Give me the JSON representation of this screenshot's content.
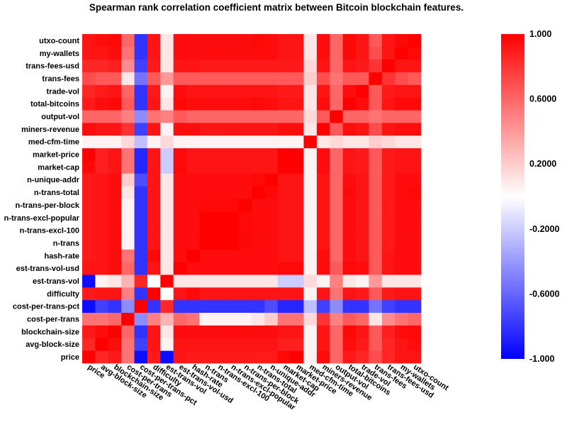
{
  "chart_data": {
    "type": "heatmap",
    "title": "Spearman rank correlation coefficient matrix between Bitcoin blockchain features.",
    "features": [
      "price",
      "avg-block-size",
      "blockchain-size",
      "cost-per-trans",
      "cost-per-trans-pct",
      "difficulty",
      "est-trans-vol",
      "est-trans-vol-usd",
      "hash-rate",
      "n-trans",
      "n-trans-excl-100",
      "n-trans-excl-popular",
      "n-trans-per-block",
      "n-trans-total",
      "n-unique-addr",
      "market-cap",
      "market-price",
      "med-cfm-time",
      "miners-revenue",
      "output-vol",
      "total-bitcoins",
      "trade-vol",
      "trans-fees",
      "trans-fees-usd",
      "my-wallets",
      "utxo-count"
    ],
    "x_order": "features as listed, left to right",
    "y_order": "features as listed, bottom (price) to top (utxo-count)",
    "colormap": {
      "min": -1.0,
      "mid": 0.0,
      "max": 1.0,
      "min_color": "#0000ff",
      "mid_color": "#ffffff",
      "max_color": "#ff0000"
    },
    "colorbar_ticks": [
      "1.000",
      "0.6000",
      "0.2000",
      "-0.2000",
      "-0.6000",
      "-1.000"
    ],
    "colorbar_tick_values": [
      1.0,
      0.6,
      0.2,
      -0.2,
      -0.6,
      -1.0
    ],
    "matrix": [
      [
        1.0,
        0.85,
        0.9,
        0.55,
        -0.95,
        0.9,
        -0.95,
        0.92,
        0.9,
        0.9,
        0.9,
        0.9,
        0.9,
        0.9,
        0.9,
        0.97,
        1.0,
        0.05,
        0.95,
        0.6,
        0.9,
        0.85,
        0.7,
        0.85,
        0.92,
        0.92
      ],
      [
        0.85,
        1.0,
        0.95,
        0.55,
        -0.75,
        0.92,
        0.05,
        0.92,
        0.92,
        0.92,
        0.92,
        0.92,
        0.92,
        0.92,
        0.92,
        0.88,
        0.88,
        0.05,
        0.92,
        0.6,
        0.95,
        0.9,
        0.65,
        0.85,
        0.92,
        0.95
      ],
      [
        0.9,
        0.95,
        1.0,
        0.6,
        -0.8,
        0.92,
        0.1,
        0.95,
        0.95,
        0.95,
        0.95,
        0.95,
        0.95,
        0.95,
        0.95,
        0.92,
        0.92,
        0.05,
        0.92,
        0.6,
        0.97,
        0.92,
        0.65,
        0.88,
        0.95,
        0.97
      ],
      [
        0.55,
        0.55,
        0.6,
        1.0,
        -0.45,
        0.5,
        0.3,
        0.6,
        0.55,
        0.05,
        0.05,
        0.05,
        0.05,
        0.1,
        0.2,
        0.55,
        0.55,
        0.15,
        0.8,
        0.5,
        0.65,
        0.6,
        0.1,
        0.45,
        0.55,
        0.6
      ],
      [
        -0.95,
        -0.75,
        -0.8,
        -0.45,
        1.0,
        -0.8,
        0.85,
        -0.8,
        -0.8,
        -0.8,
        -0.8,
        -0.8,
        -0.8,
        -0.8,
        -0.7,
        -0.85,
        -0.85,
        -0.25,
        -0.75,
        -0.45,
        -0.8,
        -0.8,
        -0.55,
        -0.75,
        -0.8,
        -0.8
      ],
      [
        0.9,
        0.92,
        0.92,
        0.5,
        -0.8,
        1.0,
        0.0,
        0.92,
        0.97,
        0.92,
        0.92,
        0.92,
        0.92,
        0.92,
        0.92,
        0.92,
        0.92,
        0.05,
        0.92,
        0.55,
        0.92,
        0.9,
        0.65,
        0.9,
        0.92,
        0.92
      ],
      [
        -0.95,
        0.05,
        0.1,
        0.3,
        0.85,
        0.0,
        1.0,
        0.1,
        0.1,
        0.1,
        0.1,
        0.1,
        0.1,
        0.1,
        0.1,
        -0.2,
        -0.2,
        0.15,
        0.05,
        0.5,
        0.1,
        0.05,
        0.4,
        0.1,
        0.1,
        0.1
      ],
      [
        0.92,
        0.92,
        0.95,
        0.6,
        -0.8,
        0.92,
        0.1,
        1.0,
        0.95,
        0.95,
        0.95,
        0.95,
        0.95,
        0.95,
        0.95,
        0.97,
        0.97,
        0.05,
        0.95,
        0.65,
        0.97,
        0.95,
        0.65,
        0.92,
        0.95,
        0.95
      ],
      [
        0.9,
        0.92,
        0.95,
        0.55,
        -0.8,
        0.97,
        0.1,
        0.95,
        1.0,
        0.95,
        0.95,
        0.95,
        0.95,
        0.95,
        0.95,
        0.92,
        0.92,
        0.05,
        0.95,
        0.6,
        0.95,
        0.92,
        0.65,
        0.92,
        0.95,
        0.95
      ],
      [
        0.9,
        0.92,
        0.95,
        0.05,
        -0.8,
        0.92,
        0.1,
        0.95,
        0.95,
        1.0,
        1.0,
        1.0,
        0.97,
        0.95,
        0.95,
        0.92,
        0.92,
        0.05,
        0.92,
        0.6,
        0.95,
        0.92,
        0.65,
        0.9,
        0.95,
        0.95
      ],
      [
        0.9,
        0.92,
        0.95,
        0.05,
        -0.8,
        0.92,
        0.1,
        0.95,
        0.95,
        1.0,
        1.0,
        1.0,
        0.97,
        0.95,
        0.95,
        0.92,
        0.92,
        0.05,
        0.92,
        0.6,
        0.95,
        0.92,
        0.65,
        0.9,
        0.95,
        0.95
      ],
      [
        0.9,
        0.92,
        0.95,
        0.05,
        -0.8,
        0.92,
        0.1,
        0.95,
        0.95,
        1.0,
        1.0,
        1.0,
        0.97,
        0.95,
        0.95,
        0.92,
        0.92,
        0.05,
        0.92,
        0.6,
        0.95,
        0.92,
        0.65,
        0.9,
        0.95,
        0.95
      ],
      [
        0.9,
        0.92,
        0.95,
        0.05,
        -0.8,
        0.92,
        0.1,
        0.95,
        0.95,
        0.97,
        0.97,
        0.97,
        1.0,
        0.95,
        0.95,
        0.92,
        0.92,
        0.05,
        0.92,
        0.6,
        0.95,
        0.92,
        0.65,
        0.9,
        0.95,
        0.95
      ],
      [
        0.9,
        0.92,
        0.95,
        0.1,
        -0.8,
        0.92,
        0.1,
        0.95,
        0.95,
        0.95,
        0.95,
        0.95,
        0.95,
        1.0,
        0.97,
        0.92,
        0.92,
        0.05,
        0.92,
        0.6,
        0.97,
        0.92,
        0.65,
        0.9,
        0.95,
        0.97
      ],
      [
        0.9,
        0.92,
        0.95,
        0.2,
        -0.7,
        0.92,
        0.1,
        0.95,
        0.95,
        0.95,
        0.95,
        0.95,
        0.95,
        0.97,
        1.0,
        0.92,
        0.92,
        0.05,
        0.92,
        0.6,
        0.95,
        0.92,
        0.65,
        0.9,
        0.95,
        0.95
      ],
      [
        0.97,
        0.88,
        0.92,
        0.55,
        -0.85,
        0.92,
        -0.2,
        0.97,
        0.92,
        0.92,
        0.92,
        0.92,
        0.92,
        0.92,
        0.92,
        1.0,
        1.0,
        0.05,
        0.95,
        0.6,
        0.92,
        0.9,
        0.65,
        0.9,
        0.92,
        0.92
      ],
      [
        1.0,
        0.88,
        0.92,
        0.55,
        -0.85,
        0.92,
        -0.2,
        0.97,
        0.92,
        0.92,
        0.92,
        0.92,
        0.92,
        0.92,
        0.92,
        1.0,
        1.0,
        0.05,
        0.95,
        0.6,
        0.92,
        0.9,
        0.65,
        0.9,
        0.92,
        0.92
      ],
      [
        0.05,
        0.05,
        0.05,
        0.15,
        -0.25,
        0.05,
        0.15,
        0.05,
        0.05,
        0.05,
        0.05,
        0.05,
        0.05,
        0.05,
        0.05,
        0.05,
        0.05,
        1.0,
        0.1,
        0.15,
        0.1,
        0.1,
        0.2,
        0.15,
        0.1,
        0.1
      ],
      [
        0.95,
        0.92,
        0.92,
        0.8,
        -0.75,
        0.92,
        0.05,
        0.95,
        0.95,
        0.92,
        0.92,
        0.92,
        0.92,
        0.92,
        0.92,
        0.95,
        0.95,
        0.1,
        1.0,
        0.65,
        0.95,
        0.92,
        0.7,
        0.92,
        0.95,
        0.95
      ],
      [
        0.6,
        0.6,
        0.6,
        0.5,
        -0.45,
        0.55,
        0.5,
        0.65,
        0.6,
        0.6,
        0.6,
        0.6,
        0.6,
        0.6,
        0.6,
        0.6,
        0.6,
        0.15,
        0.65,
        1.0,
        0.6,
        0.6,
        0.55,
        0.6,
        0.6,
        0.6
      ],
      [
        0.9,
        0.95,
        0.97,
        0.65,
        -0.8,
        0.92,
        0.1,
        0.97,
        0.95,
        0.95,
        0.95,
        0.95,
        0.95,
        0.97,
        0.95,
        0.92,
        0.92,
        0.1,
        0.95,
        0.6,
        1.0,
        0.95,
        0.65,
        0.92,
        0.97,
        0.97
      ],
      [
        0.85,
        0.9,
        0.92,
        0.6,
        -0.8,
        0.9,
        0.05,
        0.95,
        0.92,
        0.92,
        0.92,
        0.92,
        0.92,
        0.92,
        0.92,
        0.9,
        0.9,
        0.1,
        0.92,
        0.6,
        0.95,
        1.0,
        0.65,
        0.9,
        0.92,
        0.92
      ],
      [
        0.7,
        0.65,
        0.65,
        0.1,
        -0.55,
        0.65,
        0.4,
        0.65,
        0.65,
        0.65,
        0.65,
        0.65,
        0.65,
        0.65,
        0.65,
        0.65,
        0.65,
        0.2,
        0.7,
        0.55,
        0.65,
        0.65,
        1.0,
        0.8,
        0.7,
        0.65
      ],
      [
        0.85,
        0.85,
        0.88,
        0.45,
        -0.75,
        0.9,
        0.1,
        0.92,
        0.92,
        0.9,
        0.9,
        0.9,
        0.9,
        0.9,
        0.9,
        0.9,
        0.9,
        0.15,
        0.92,
        0.6,
        0.92,
        0.9,
        0.8,
        1.0,
        0.92,
        0.92
      ],
      [
        0.92,
        0.92,
        0.95,
        0.55,
        -0.8,
        0.92,
        0.1,
        0.95,
        0.95,
        0.95,
        0.95,
        0.95,
        0.95,
        0.95,
        0.95,
        0.92,
        0.92,
        0.1,
        0.95,
        0.6,
        0.97,
        0.92,
        0.7,
        0.92,
        1.0,
        0.97
      ],
      [
        0.92,
        0.95,
        0.97,
        0.6,
        -0.8,
        0.92,
        0.1,
        0.95,
        0.95,
        0.95,
        0.95,
        0.95,
        0.95,
        0.97,
        0.95,
        0.92,
        0.92,
        0.1,
        0.95,
        0.6,
        0.97,
        0.92,
        0.65,
        0.92,
        0.97,
        1.0
      ]
    ]
  }
}
